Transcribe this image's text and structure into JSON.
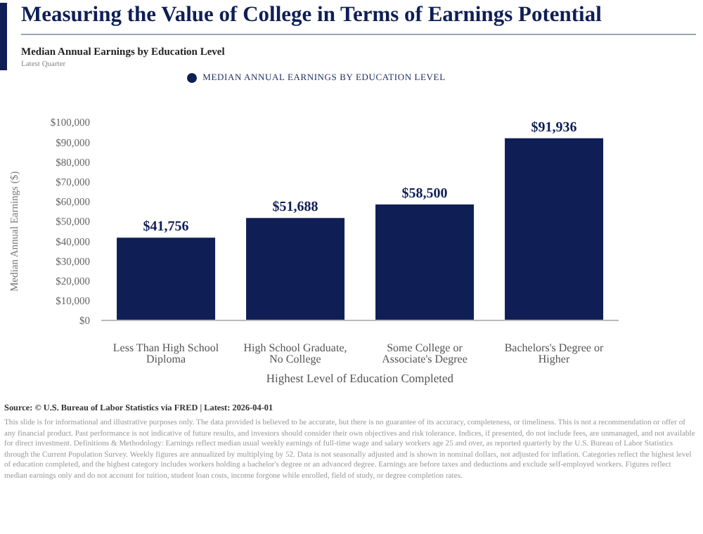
{
  "chart_data": {
    "type": "bar",
    "title": "Measuring the Value of College in Terms of Earnings Potential",
    "subtitle": "Median Annual Earnings by Education Level",
    "xlabel": "Highest Level of Education Completed",
    "ylabel": "Median Annual Earnings ($)",
    "categories": [
      "Less Than High School Diploma",
      "High School Graduate, No College",
      "Some College or Associate's Degree",
      "Bachelors's Degree or Higher"
    ],
    "series": [
      {
        "name": "MEDIAN ANNUAL EARNINGS BY EDUCATION LEVEL",
        "color": "#0f1f55",
        "values": [
          41756,
          51688,
          58500,
          91936
        ],
        "value_labels": [
          "$41,756",
          "$51,688",
          "$58,500",
          "$91,936"
        ]
      }
    ],
    "ylim": [
      0,
      100000
    ],
    "yticks": [
      {
        "value": 0,
        "label": "$0"
      },
      {
        "value": 10000,
        "label": "$10,000"
      },
      {
        "value": 20000,
        "label": "$20,000"
      },
      {
        "value": 30000,
        "label": "$30,000"
      },
      {
        "value": 40000,
        "label": "$40,000"
      },
      {
        "value": 50000,
        "label": "$50,000"
      },
      {
        "value": 60000,
        "label": "$60,000"
      },
      {
        "value": 70000,
        "label": "$70,000"
      },
      {
        "value": 80000,
        "label": "$80,000"
      },
      {
        "value": 90000,
        "label": "$90,000"
      },
      {
        "value": 100000,
        "label": "$100,000"
      }
    ],
    "grid": false,
    "legend": "top",
    "annotations": [
      "Latest Quarter",
      "Source: © U.S. Bureau of Labor Statistics via FRED | Latest: 2026-04-01",
      "This slide is for informational and illustrative purposes only. The data provided is believed to be accurate, but there is no guarantee of its accuracy, completeness, or timeliness. This is not a recommendation or offer of any financial product. Past performance is not indicative of future results, and investors should consider their own objectives and risk tolerance. Indices, if presented, do not include fees, are unmanaged, and not available for direct investment. Definitions & Methodology: Earnings reflect median usual weekly earnings of full-time wage and salary workers age 25 and over, as reported quarterly by the U.S. Bureau of Labor Statistics through the Current Population Survey. Weekly figures are annualized by multiplying by 52. Data is not seasonally adjusted and is shown in nominal dollars, not adjusted for inflation. Categories reflect the highest level of education completed, and the highest category includes workers holding a bachelor's degree or an advanced degree. Earnings are before taxes and deductions and exclude self-employed workers. Figures reflect median earnings only and do not account for tuition, student loan costs, income forgone while enrolled, field of study, or degree completion rates."
    ]
  }
}
